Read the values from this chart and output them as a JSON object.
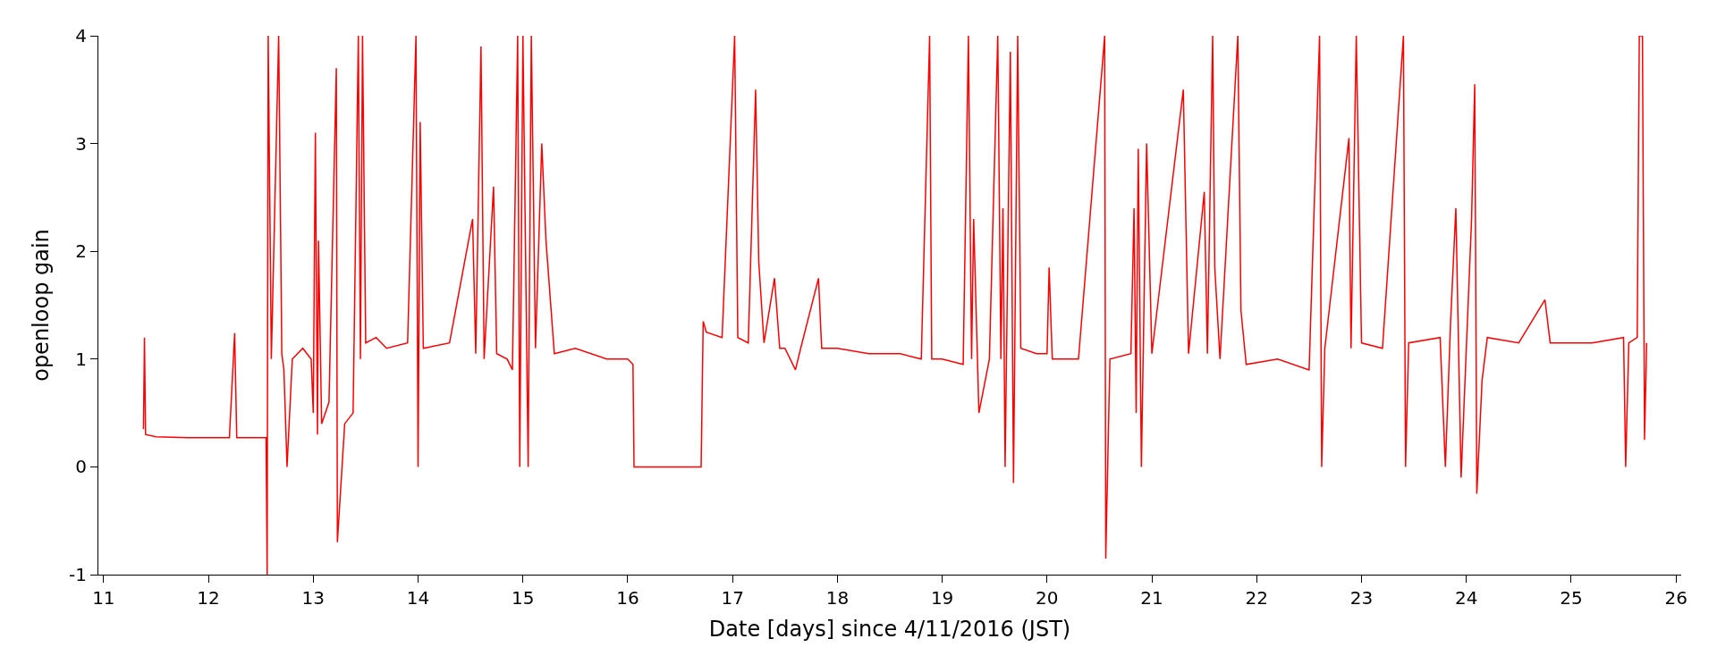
{
  "chart_data": {
    "type": "line",
    "xlabel": "Date [days] since 4/11/2016 (JST)",
    "ylabel": "openloop gain",
    "x": [
      11.38,
      11.39,
      11.4,
      11.5,
      11.8,
      12.2,
      12.25,
      12.27,
      12.5,
      12.55,
      12.56,
      12.57,
      12.6,
      12.67,
      12.7,
      12.72,
      12.75,
      12.8,
      12.9,
      12.98,
      13.0,
      13.02,
      13.04,
      13.05,
      13.08,
      13.15,
      13.22,
      13.23,
      13.3,
      13.38,
      13.43,
      13.45,
      13.47,
      13.5,
      13.6,
      13.7,
      13.9,
      13.98,
      14.0,
      14.02,
      14.05,
      14.3,
      14.52,
      14.55,
      14.6,
      14.63,
      14.72,
      14.75,
      14.85,
      14.9,
      14.95,
      14.97,
      15.0,
      15.05,
      15.08,
      15.12,
      15.18,
      15.22,
      15.3,
      15.5,
      15.8,
      16.0,
      16.05,
      16.06,
      16.7,
      16.72,
      16.75,
      16.9,
      17.02,
      17.05,
      17.15,
      17.22,
      17.25,
      17.3,
      17.4,
      17.45,
      17.5,
      17.6,
      17.65,
      17.82,
      17.85,
      18.0,
      18.3,
      18.6,
      18.8,
      18.88,
      18.9,
      19.0,
      19.2,
      19.25,
      19.28,
      19.3,
      19.35,
      19.45,
      19.53,
      19.56,
      19.58,
      19.6,
      19.65,
      19.68,
      19.72,
      19.75,
      19.9,
      20.0,
      20.02,
      20.05,
      20.3,
      20.55,
      20.56,
      20.6,
      20.8,
      20.83,
      20.85,
      20.87,
      20.9,
      20.95,
      21.0,
      21.3,
      21.35,
      21.5,
      21.53,
      21.58,
      21.6,
      21.65,
      21.82,
      21.85,
      21.9,
      22.2,
      22.5,
      22.6,
      22.62,
      22.65,
      22.88,
      22.9,
      22.95,
      23.0,
      23.2,
      23.4,
      23.42,
      23.45,
      23.75,
      23.8,
      23.85,
      23.9,
      23.95,
      24.05,
      24.08,
      24.1,
      24.15,
      24.2,
      24.5,
      24.75,
      24.8,
      25.2,
      25.5,
      25.52,
      25.55,
      25.63,
      25.65,
      25.68,
      25.7,
      25.72
    ],
    "values": [
      0.35,
      1.2,
      0.3,
      0.28,
      0.27,
      0.27,
      1.24,
      0.27,
      0.27,
      0.27,
      -1,
      4,
      1.0,
      4,
      1.05,
      0.9,
      0,
      1.0,
      1.1,
      1.0,
      0.5,
      3.1,
      0.3,
      2.1,
      0.4,
      0.6,
      3.7,
      -0.7,
      0.4,
      0.5,
      4,
      1.0,
      4,
      1.15,
      1.2,
      1.1,
      1.15,
      4,
      0,
      3.2,
      1.1,
      1.15,
      2.3,
      1.05,
      3.9,
      1.0,
      2.6,
      1.05,
      1.0,
      0.9,
      4,
      0,
      4,
      0,
      4,
      1.1,
      3.0,
      2.1,
      1.05,
      1.1,
      1.0,
      1.0,
      0.95,
      0,
      0,
      1.35,
      1.25,
      1.2,
      4,
      1.2,
      1.15,
      3.5,
      1.9,
      1.15,
      1.75,
      1.1,
      1.1,
      0.9,
      1.1,
      1.75,
      1.1,
      1.1,
      1.05,
      1.05,
      1.0,
      4,
      1.0,
      1.0,
      0.95,
      4,
      1.0,
      2.3,
      0.5,
      1.0,
      4,
      1.0,
      2.4,
      0,
      3.85,
      -0.15,
      4,
      1.1,
      1.05,
      1.05,
      1.85,
      1.0,
      1.0,
      4,
      -0.85,
      1.0,
      1.05,
      2.4,
      0.5,
      2.95,
      0,
      3.0,
      1.05,
      3.5,
      1.05,
      2.55,
      1.05,
      4,
      1.85,
      1.0,
      4,
      1.45,
      0.95,
      1.0,
      0.9,
      4,
      0,
      1.1,
      3.05,
      1.1,
      4,
      1.15,
      1.1,
      4,
      0,
      1.15,
      1.2,
      0,
      1.35,
      2.4,
      -0.1,
      2.3,
      3.55,
      -0.25,
      0.8,
      1.2,
      1.15,
      1.55,
      1.15,
      1.15,
      1.2,
      0,
      1.15,
      1.2,
      4,
      4,
      0.25,
      1.15
    ],
    "color": "#ff0000",
    "line_style": "solid",
    "marker": "none",
    "xlim": [
      10.95,
      26.05
    ],
    "ylim": [
      -1,
      4
    ],
    "xticks": [
      11,
      12,
      13,
      14,
      15,
      16,
      17,
      18,
      19,
      20,
      21,
      22,
      23,
      24,
      25,
      26
    ],
    "yticks": [
      -1,
      0,
      1,
      2,
      3,
      4
    ]
  }
}
